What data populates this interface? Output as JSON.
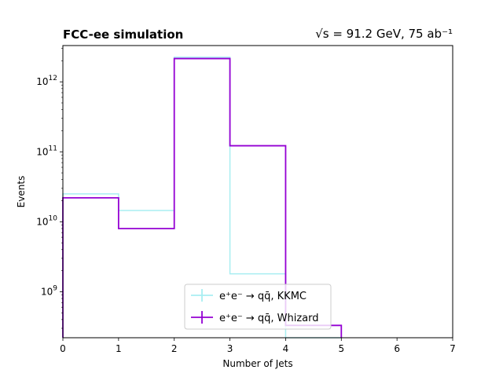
{
  "chart_data": {
    "type": "histogram-step",
    "title_left": "FCC-ee simulation",
    "title_right": "√s = 91.2 GeV, 75 ab⁻¹",
    "xlabel": "Number of Jets",
    "ylabel": "Events",
    "xlim": [
      0,
      7
    ],
    "ylim": [
      220000000.0,
      3300000000000.0
    ],
    "yscale": "log",
    "xticks": [
      0,
      1,
      2,
      3,
      4,
      5,
      6,
      7
    ],
    "yticks": [
      {
        "value": 1000000000.0,
        "base": "10",
        "exp": "9"
      },
      {
        "value": 10000000000.0,
        "base": "10",
        "exp": "10"
      },
      {
        "value": 100000000000.0,
        "base": "10",
        "exp": "11"
      },
      {
        "value": 1000000000000.0,
        "base": "10",
        "exp": "12"
      }
    ],
    "bin_edges": [
      0,
      1,
      2,
      3,
      4,
      5
    ],
    "series": [
      {
        "name": "e⁺e⁻ → qq̄, KKMC",
        "color": "#a8eef2",
        "values": [
          25000000000.0,
          14500000000.0,
          2250000000000.0,
          1800000000.0,
          0
        ]
      },
      {
        "name": "e⁺e⁻ → qq̄, Whizard",
        "color": "#9400d3",
        "values": [
          22000000000.0,
          8000000000.0,
          2150000000000.0,
          122000000000.0,
          330000000.0
        ]
      }
    ],
    "legend_position": "lower-center",
    "grid": false
  }
}
